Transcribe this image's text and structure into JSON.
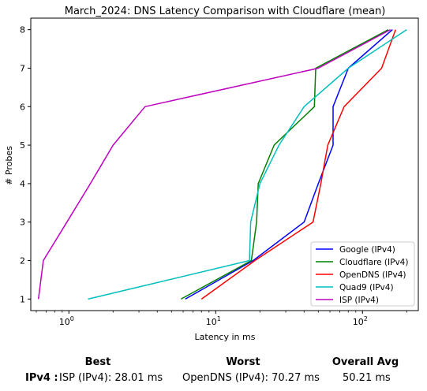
{
  "chart_data": {
    "type": "line",
    "title": "March_2024: DNS Latency Comparison with Cloudflare (mean)",
    "xlabel": "Latency in ms",
    "ylabel": "# Probes",
    "xscale": "log",
    "xlim": [
      0.55,
      240
    ],
    "ylim": [
      0.7,
      8.3
    ],
    "xticks": [
      {
        "value": 1,
        "label": "10^0"
      },
      {
        "value": 10,
        "label": "10^1"
      },
      {
        "value": 100,
        "label": "10^2"
      }
    ],
    "yticks": [
      1,
      2,
      3,
      4,
      5,
      6,
      7,
      8
    ],
    "legend_position": "lower-right",
    "series": [
      {
        "name": "Google (IPv4)",
        "color": "#0000ff",
        "points": [
          [
            6.2,
            1
          ],
          [
            18,
            2
          ],
          [
            40,
            3
          ],
          [
            50,
            4
          ],
          [
            63,
            5
          ],
          [
            63,
            6
          ],
          [
            80,
            7
          ],
          [
            160,
            8
          ]
        ]
      },
      {
        "name": "Cloudflare (IPv4)",
        "color": "#008000",
        "points": [
          [
            5.8,
            1
          ],
          [
            17.5,
            2
          ],
          [
            19,
            3
          ],
          [
            19.5,
            4
          ],
          [
            25,
            5
          ],
          [
            47,
            6
          ],
          [
            48,
            7
          ],
          [
            150,
            8
          ]
        ]
      },
      {
        "name": "OpenDNS (IPv4)",
        "color": "#ff0000",
        "points": [
          [
            8,
            1
          ],
          [
            18.5,
            2
          ],
          [
            46,
            3
          ],
          [
            52,
            4
          ],
          [
            58,
            5
          ],
          [
            75,
            6
          ],
          [
            135,
            7
          ],
          [
            168,
            8
          ]
        ]
      },
      {
        "name": "Quad9 (IPv4)",
        "color": "#00bfbf",
        "points": [
          [
            1.35,
            1
          ],
          [
            17,
            2
          ],
          [
            17.3,
            3
          ],
          [
            20,
            4
          ],
          [
            27,
            5
          ],
          [
            40,
            6
          ],
          [
            80,
            7
          ],
          [
            200,
            8
          ]
        ]
      },
      {
        "name": "ISP (IPv4)",
        "color": "#bf00bf",
        "points": [
          [
            0.62,
            1
          ],
          [
            0.67,
            2
          ],
          [
            0.97,
            3
          ],
          [
            1.4,
            4
          ],
          [
            2,
            5
          ],
          [
            3.3,
            6
          ],
          [
            50,
            7
          ],
          [
            155,
            8
          ]
        ]
      }
    ]
  },
  "summary": {
    "best_header": "Best",
    "worst_header": "Worst",
    "avg_header": "Overall Avg",
    "row_label": "IPv4 :",
    "best_value": "ISP (IPv4): 28.01 ms",
    "worst_value": "OpenDNS (IPv4): 70.27 ms",
    "avg_value": "50.21 ms"
  }
}
